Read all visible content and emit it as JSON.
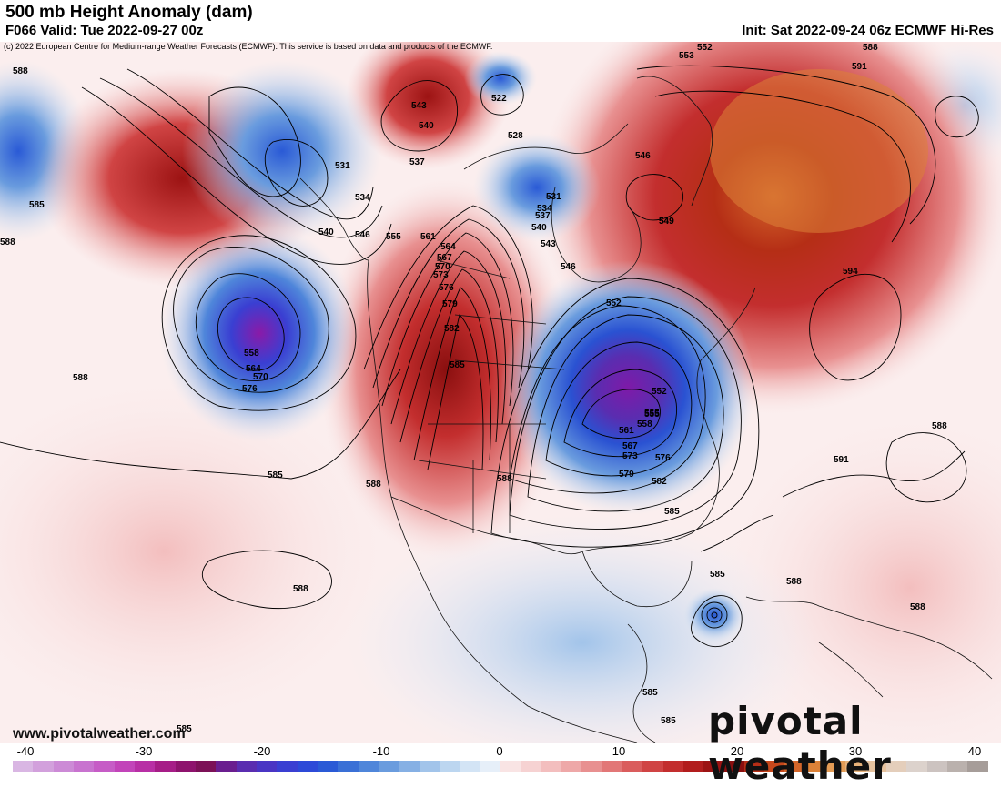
{
  "header": {
    "title": "500 mb Height Anomaly (dam)",
    "valid": "F066 Valid: Tue 2022-09-27 00z",
    "init": "Init: Sat 2022-09-24 06z ECMWF Hi-Res",
    "copyright": "(c) 2022 European Centre for Medium-range Weather Forecasts (ECMWF). This service is based on data and products of the ECMWF."
  },
  "watermark": {
    "url": "www.pivotalweather.com",
    "logo": "pivotal weather"
  },
  "colorbar": {
    "ticks": [
      "-40",
      "-30",
      "-20",
      "-10",
      "0",
      "10",
      "20",
      "30",
      "40"
    ],
    "colors": [
      "#d9b6e3",
      "#d2a0dc",
      "#cc8ad6",
      "#c873cf",
      "#c65cc6",
      "#c244b9",
      "#b82fa5",
      "#a61d87",
      "#8e136d",
      "#7c1157",
      "#6a1e8f",
      "#5a2db0",
      "#4a35c4",
      "#3a3fd2",
      "#2d4ad8",
      "#2a5ad6",
      "#3a70d6",
      "#4f86da",
      "#6a9cde",
      "#86b0e4",
      "#a2c4ea",
      "#bcd6f0",
      "#d3e4f5",
      "#e6eff9",
      "#f9e4e4",
      "#f6d2d2",
      "#f3bebe",
      "#eea8a8",
      "#e89090",
      "#e27777",
      "#da5d5d",
      "#d04444",
      "#c32e2e",
      "#b21d1d",
      "#9c1313",
      "#8a0f0f",
      "#b52e16",
      "#c6481c",
      "#d4662a",
      "#dd8238",
      "#e49c55",
      "#e7b27a",
      "#e6c29e",
      "#e4cebb",
      "#dcd2cc",
      "#ccc3c0",
      "#bab1ad",
      "#a69d99"
    ]
  },
  "contours": {
    "labels": [
      "588",
      "585",
      "588",
      "534",
      "531",
      "540",
      "546",
      "555",
      "561",
      "564",
      "567",
      "570",
      "573",
      "576",
      "579",
      "582",
      "585",
      "543",
      "540",
      "537",
      "522",
      "528",
      "531",
      "534",
      "537",
      "540",
      "543",
      "546",
      "549",
      "552",
      "553",
      "546",
      "549",
      "552",
      "555",
      "588",
      "591",
      "594",
      "558",
      "564",
      "570",
      "576",
      "585",
      "588",
      "588",
      "588",
      "585",
      "591",
      "588",
      "585",
      "588",
      "588",
      "588",
      "585",
      "585",
      "585",
      "555",
      "558",
      "561",
      "567",
      "573",
      "576",
      "579",
      "582",
      "552"
    ]
  }
}
